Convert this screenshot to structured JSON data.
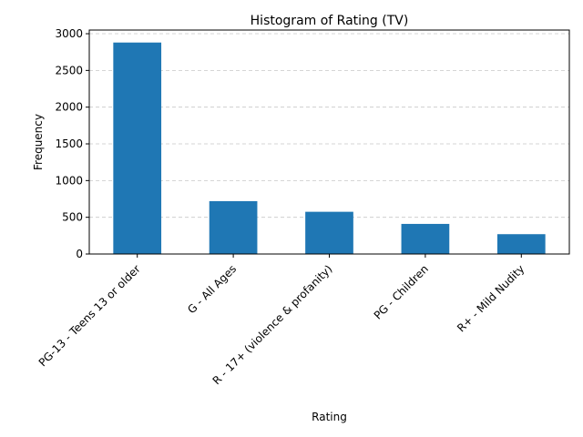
{
  "chart_data": {
    "type": "bar",
    "title": "Histogram of Rating (TV)",
    "xlabel": "Rating",
    "ylabel": "Frequency",
    "categories": [
      "PG-13 - Teens 13 or older",
      "G - All Ages",
      "R - 17+ (violence & profanity)",
      "PG - Children",
      "R+ - Mild Nudity"
    ],
    "values": [
      2880,
      720,
      575,
      410,
      270
    ],
    "ylim": [
      0,
      3050
    ],
    "yticks": [
      0,
      500,
      1000,
      1500,
      2000,
      2500,
      3000
    ],
    "grid": "y, dashed",
    "bar_color": "#1f77b4"
  }
}
